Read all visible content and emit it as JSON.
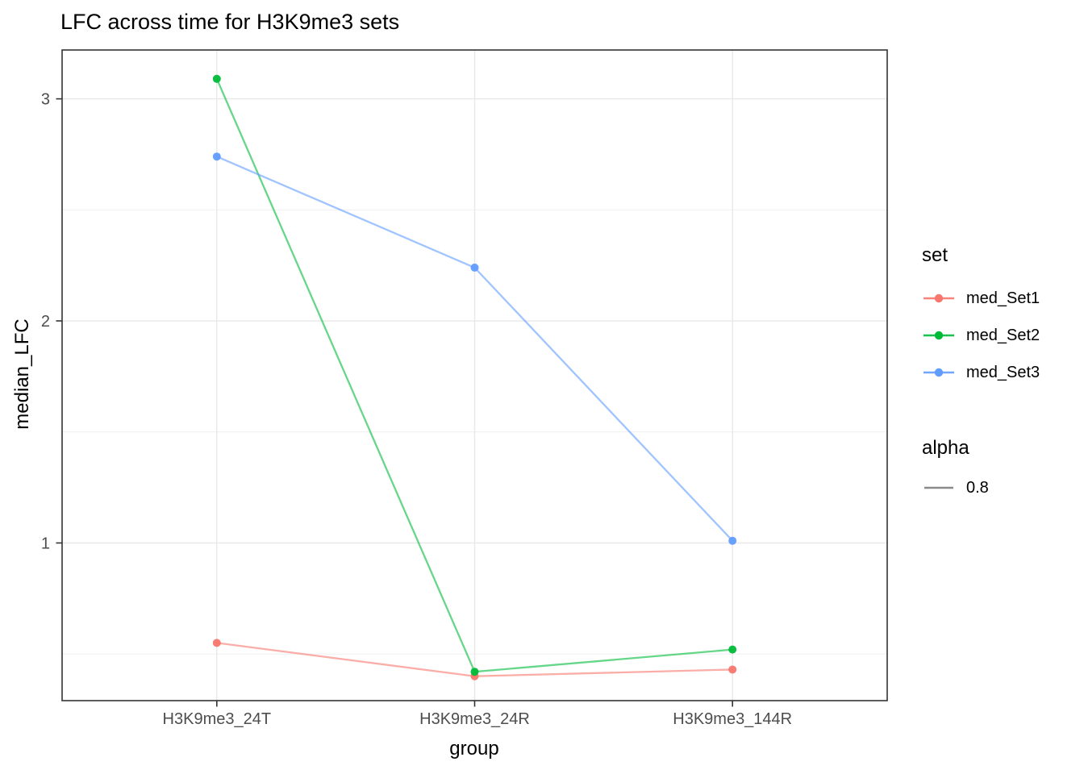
{
  "title": "LFC across time for H3K9me3 sets",
  "chart_data": {
    "type": "line",
    "categories": [
      "H3K9me3_24T",
      "H3K9me3_24R",
      "H3K9me3_144R"
    ],
    "series": [
      {
        "name": "med_Set1",
        "color": "#F8766D",
        "values": [
          0.55,
          0.4,
          0.43
        ]
      },
      {
        "name": "med_Set2",
        "color": "#00BA38",
        "values": [
          3.09,
          0.42,
          0.52
        ]
      },
      {
        "name": "med_Set3",
        "color": "#619CFF",
        "values": [
          2.74,
          2.24,
          1.01
        ]
      }
    ],
    "title": "LFC across time for H3K9me3 sets",
    "xlabel": "group",
    "ylabel": "median_LFC",
    "ylim": [
      0.29,
      3.22
    ],
    "yticks": [
      1,
      2,
      3
    ],
    "yminor": [
      0.5,
      1.5,
      2.5
    ],
    "grid": "on",
    "legend_position": "right",
    "line_alpha": 0.8
  },
  "axes": {
    "x_title": "group",
    "y_title": "median_LFC"
  },
  "legend": {
    "set": {
      "title": "set",
      "items": [
        {
          "label": "med_Set1",
          "color": "#F8766D"
        },
        {
          "label": "med_Set2",
          "color": "#00BA38"
        },
        {
          "label": "med_Set3",
          "color": "#619CFF"
        }
      ]
    },
    "alpha": {
      "title": "alpha",
      "value": "0.8",
      "color": "#8a8a8a"
    }
  },
  "colors": {
    "background": "#ffffff",
    "panel_background": "#ffffff",
    "panel_border": "#333333",
    "grid_major": "#e8e8e8",
    "grid_minor": "#f1f1f1",
    "axis_text": "#4d4d4d",
    "tick_mark": "#333333",
    "title_text": "#000000"
  }
}
